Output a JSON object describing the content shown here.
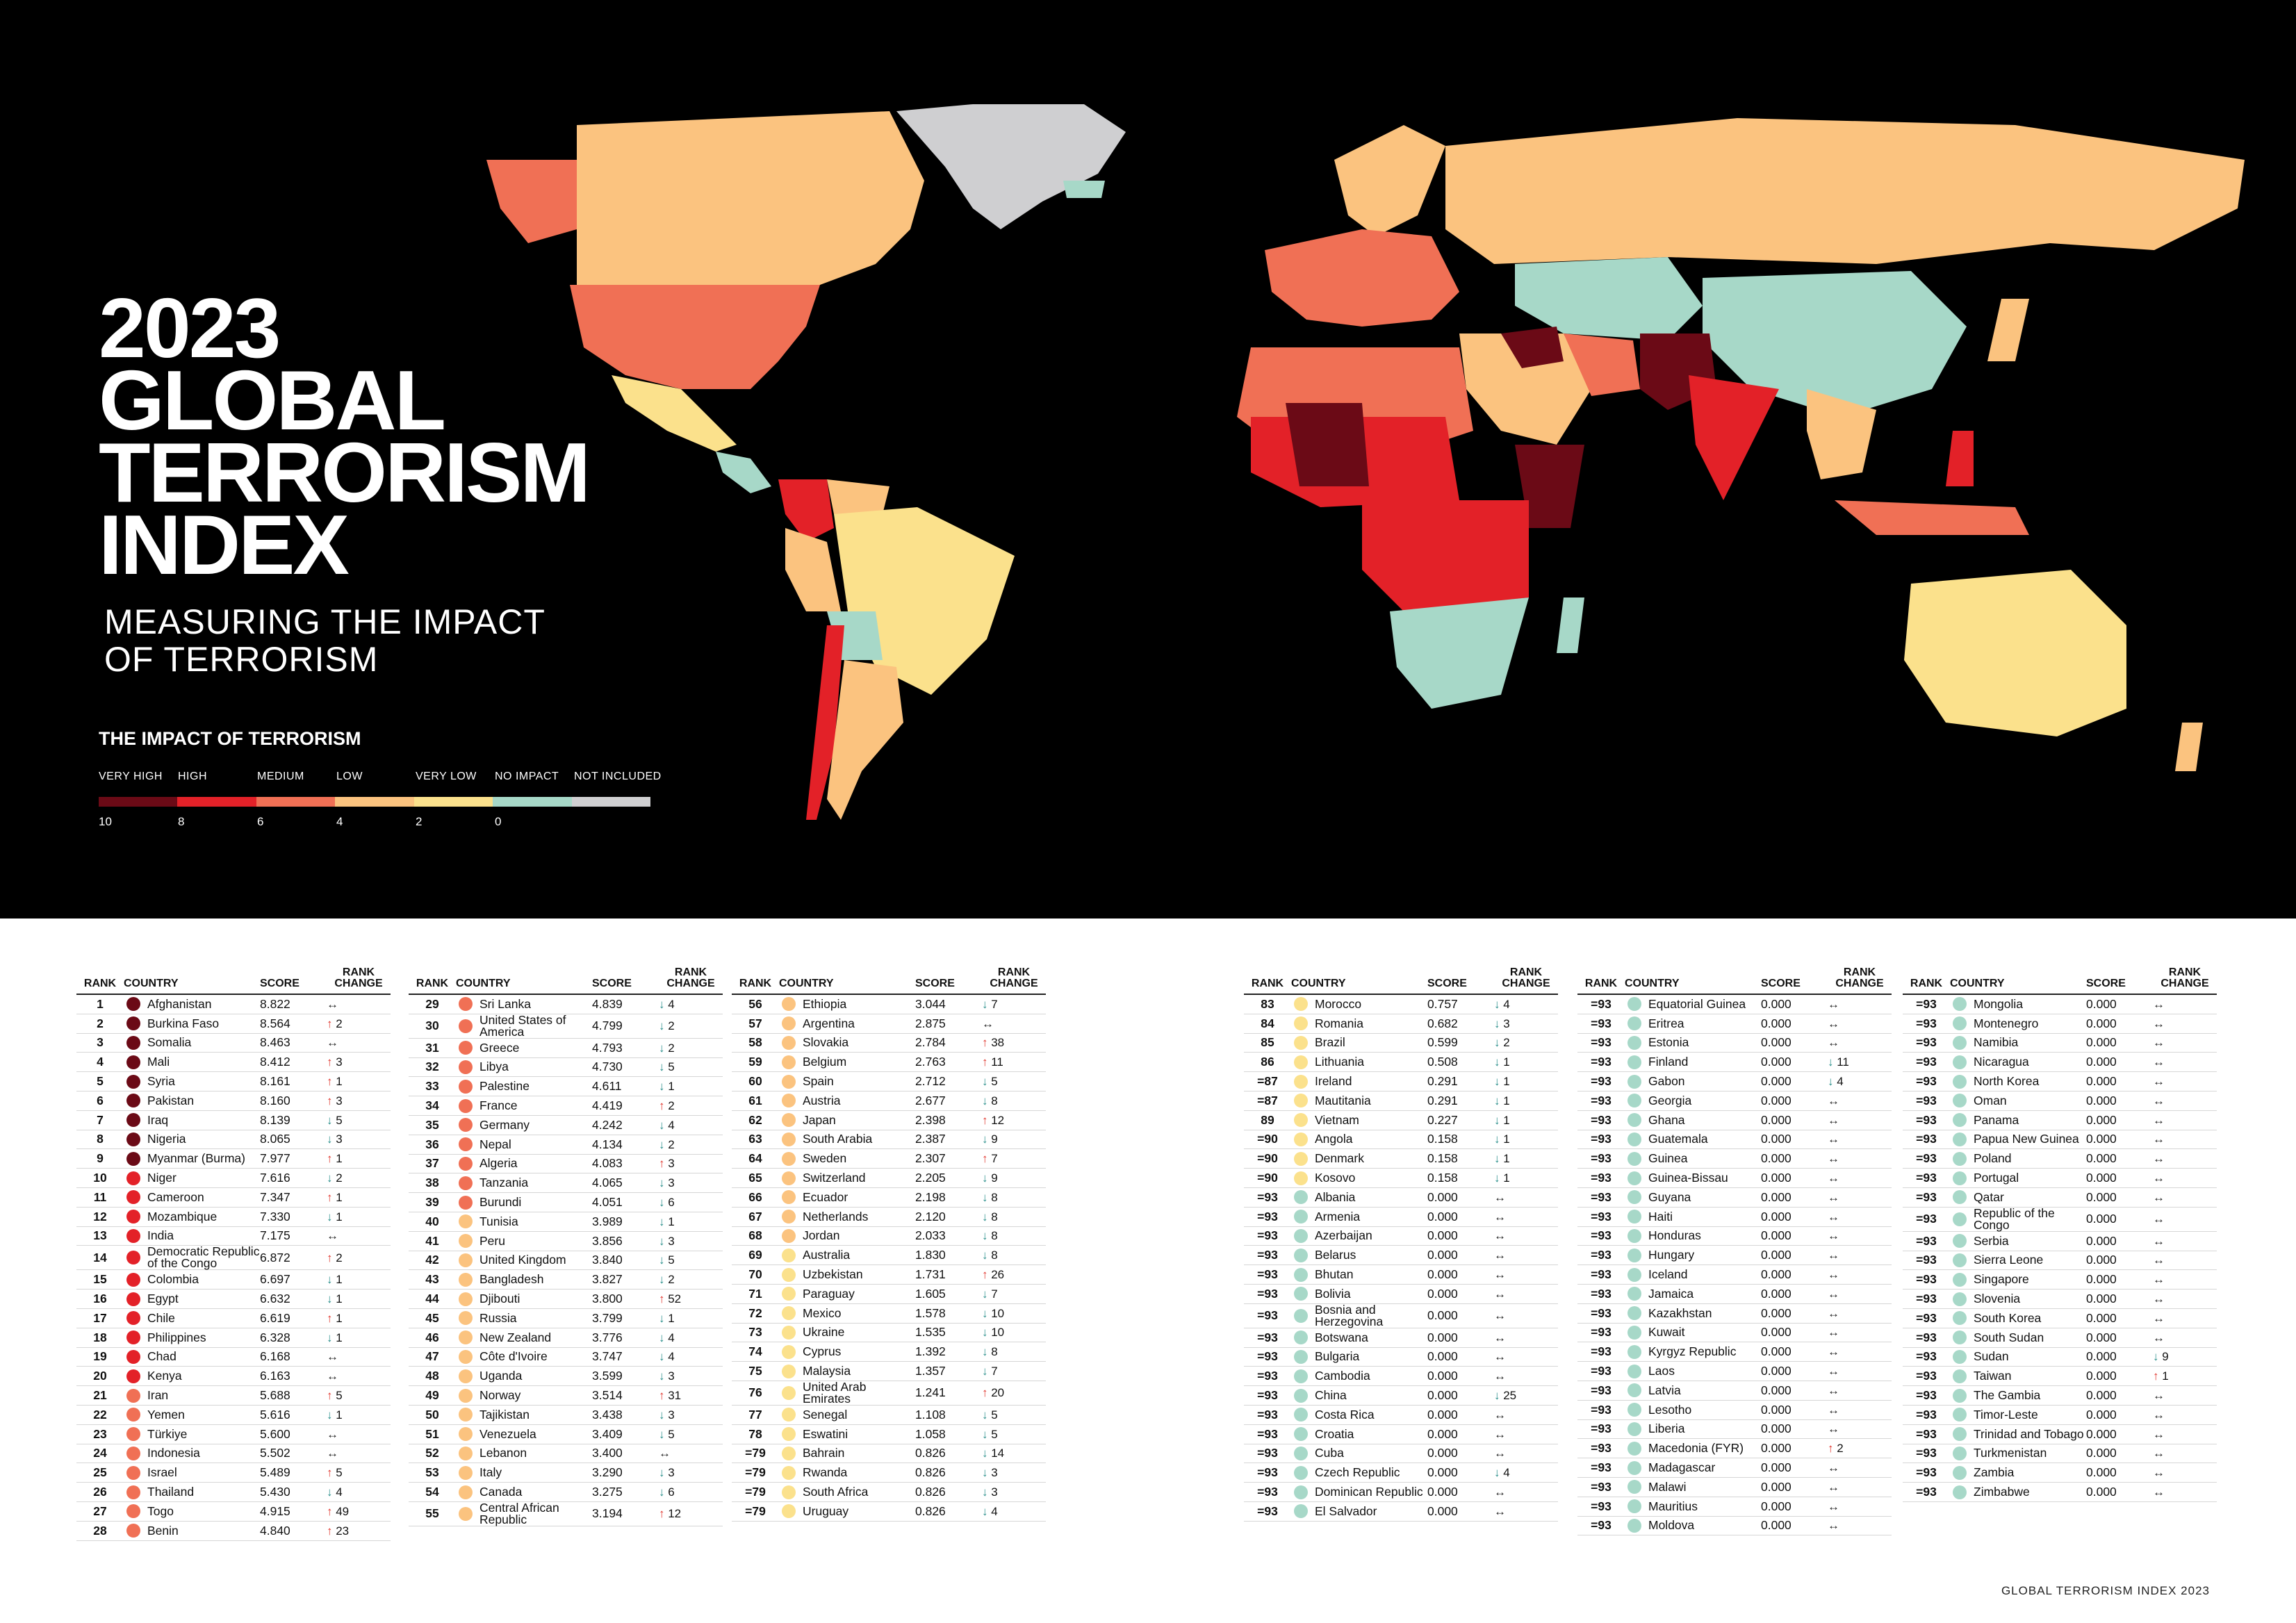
{
  "title": {
    "line1": "2023",
    "line2": "GLOBAL",
    "line3": "TERRORISM",
    "line4": "INDEX"
  },
  "subtitle": {
    "line1": "MEASURING THE IMPACT",
    "line2": "OF TERRORISM"
  },
  "legend": {
    "heading": "THE IMPACT OF TERRORISM",
    "categories": [
      {
        "label": "VERY HIGH",
        "color": "#6b0a16"
      },
      {
        "label": "HIGH",
        "color": "#e32128"
      },
      {
        "label": "MEDIUM",
        "color": "#f07055"
      },
      {
        "label": "LOW",
        "color": "#fbc37f"
      },
      {
        "label": "VERY LOW",
        "color": "#fbe18c"
      },
      {
        "label": "NO IMPACT",
        "color": "#a7d8c8"
      },
      {
        "label": "NOT INCLUDED",
        "color": "#cfcfd1"
      }
    ],
    "ticks": [
      "10",
      "8",
      "6",
      "4",
      "2",
      "0"
    ]
  },
  "headers": {
    "rank": "RANK",
    "country": "COUNTRY",
    "score": "SCORE",
    "change": "RANK CHANGE"
  },
  "arrows": {
    "up": "↑",
    "down": "↓",
    "same": "↔"
  },
  "arrow_colors": {
    "up": "#e0322a",
    "down": "#2a8f8a",
    "same": "#222222"
  },
  "level_colors": {
    "vh": "#6b0a16",
    "h": "#e32128",
    "m": "#f07055",
    "l": "#fbc37f",
    "vl": "#fbe18c",
    "n": "#a7d8c8"
  },
  "columns": [
    [
      [
        "1",
        "Afghanistan",
        "8.822",
        "vh",
        "s",
        ""
      ],
      [
        "2",
        "Burkina Faso",
        "8.564",
        "vh",
        "u",
        "2"
      ],
      [
        "3",
        "Somalia",
        "8.463",
        "vh",
        "s",
        ""
      ],
      [
        "4",
        "Mali",
        "8.412",
        "vh",
        "u",
        "3"
      ],
      [
        "5",
        "Syria",
        "8.161",
        "vh",
        "u",
        "1"
      ],
      [
        "6",
        "Pakistan",
        "8.160",
        "vh",
        "u",
        "3"
      ],
      [
        "7",
        "Iraq",
        "8.139",
        "vh",
        "d",
        "5"
      ],
      [
        "8",
        "Nigeria",
        "8.065",
        "vh",
        "d",
        "3"
      ],
      [
        "9",
        "Myanmar (Burma)",
        "7.977",
        "vh",
        "u",
        "1"
      ],
      [
        "10",
        "Niger",
        "7.616",
        "h",
        "d",
        "2"
      ],
      [
        "11",
        "Cameroon",
        "7.347",
        "h",
        "u",
        "1"
      ],
      [
        "12",
        "Mozambique",
        "7.330",
        "h",
        "d",
        "1"
      ],
      [
        "13",
        "India",
        "7.175",
        "h",
        "s",
        ""
      ],
      [
        "14",
        "Democratic Republic of the Congo",
        "6.872",
        "h",
        "u",
        "2"
      ],
      [
        "15",
        "Colombia",
        "6.697",
        "h",
        "d",
        "1"
      ],
      [
        "16",
        "Egypt",
        "6.632",
        "h",
        "d",
        "1"
      ],
      [
        "17",
        "Chile",
        "6.619",
        "h",
        "u",
        "1"
      ],
      [
        "18",
        "Philippines",
        "6.328",
        "h",
        "d",
        "1"
      ],
      [
        "19",
        "Chad",
        "6.168",
        "h",
        "s",
        ""
      ],
      [
        "20",
        "Kenya",
        "6.163",
        "h",
        "s",
        ""
      ],
      [
        "21",
        "Iran",
        "5.688",
        "m",
        "u",
        "5"
      ],
      [
        "22",
        "Yemen",
        "5.616",
        "m",
        "d",
        "1"
      ],
      [
        "23",
        "Türkiye",
        "5.600",
        "m",
        "s",
        ""
      ],
      [
        "24",
        "Indonesia",
        "5.502",
        "m",
        "s",
        ""
      ],
      [
        "25",
        "Israel",
        "5.489",
        "m",
        "u",
        "5"
      ],
      [
        "26",
        "Thailand",
        "5.430",
        "m",
        "d",
        "4"
      ],
      [
        "27",
        "Togo",
        "4.915",
        "m",
        "u",
        "49"
      ],
      [
        "28",
        "Benin",
        "4.840",
        "m",
        "u",
        "23"
      ]
    ],
    [
      [
        "29",
        "Sri Lanka",
        "4.839",
        "m",
        "d",
        "4"
      ],
      [
        "30",
        "United States of America",
        "4.799",
        "m",
        "d",
        "2"
      ],
      [
        "31",
        "Greece",
        "4.793",
        "m",
        "d",
        "2"
      ],
      [
        "32",
        "Libya",
        "4.730",
        "m",
        "d",
        "5"
      ],
      [
        "33",
        "Palestine",
        "4.611",
        "m",
        "d",
        "1"
      ],
      [
        "34",
        "France",
        "4.419",
        "m",
        "u",
        "2"
      ],
      [
        "35",
        "Germany",
        "4.242",
        "m",
        "d",
        "4"
      ],
      [
        "36",
        "Nepal",
        "4.134",
        "m",
        "d",
        "2"
      ],
      [
        "37",
        "Algeria",
        "4.083",
        "m",
        "u",
        "3"
      ],
      [
        "38",
        "Tanzania",
        "4.065",
        "m",
        "d",
        "3"
      ],
      [
        "39",
        "Burundi",
        "4.051",
        "m",
        "d",
        "6"
      ],
      [
        "40",
        "Tunisia",
        "3.989",
        "l",
        "d",
        "1"
      ],
      [
        "41",
        "Peru",
        "3.856",
        "l",
        "d",
        "3"
      ],
      [
        "42",
        "United Kingdom",
        "3.840",
        "l",
        "d",
        "5"
      ],
      [
        "43",
        "Bangladesh",
        "3.827",
        "l",
        "d",
        "2"
      ],
      [
        "44",
        "Djibouti",
        "3.800",
        "l",
        "u",
        "52"
      ],
      [
        "45",
        "Russia",
        "3.799",
        "l",
        "d",
        "1"
      ],
      [
        "46",
        "New Zealand",
        "3.776",
        "l",
        "d",
        "4"
      ],
      [
        "47",
        "Côte d'Ivoire",
        "3.747",
        "l",
        "d",
        "4"
      ],
      [
        "48",
        "Uganda",
        "3.599",
        "l",
        "d",
        "3"
      ],
      [
        "49",
        "Norway",
        "3.514",
        "l",
        "u",
        "31"
      ],
      [
        "50",
        "Tajikistan",
        "3.438",
        "l",
        "d",
        "3"
      ],
      [
        "51",
        "Venezuela",
        "3.409",
        "l",
        "d",
        "5"
      ],
      [
        "52",
        "Lebanon",
        "3.400",
        "l",
        "s",
        ""
      ],
      [
        "53",
        "Italy",
        "3.290",
        "l",
        "d",
        "3"
      ],
      [
        "54",
        "Canada",
        "3.275",
        "l",
        "d",
        "6"
      ],
      [
        "55",
        "Central African Republic",
        "3.194",
        "l",
        "u",
        "12"
      ]
    ],
    [
      [
        "56",
        "Ethiopia",
        "3.044",
        "l",
        "d",
        "7"
      ],
      [
        "57",
        "Argentina",
        "2.875",
        "l",
        "s",
        ""
      ],
      [
        "58",
        "Slovakia",
        "2.784",
        "l",
        "u",
        "38"
      ],
      [
        "59",
        "Belgium",
        "2.763",
        "l",
        "u",
        "11"
      ],
      [
        "60",
        "Spain",
        "2.712",
        "l",
        "d",
        "5"
      ],
      [
        "61",
        "Austria",
        "2.677",
        "l",
        "d",
        "8"
      ],
      [
        "62",
        "Japan",
        "2.398",
        "l",
        "u",
        "12"
      ],
      [
        "63",
        "South Arabia",
        "2.387",
        "l",
        "d",
        "9"
      ],
      [
        "64",
        "Sweden",
        "2.307",
        "l",
        "u",
        "7"
      ],
      [
        "65",
        "Switzerland",
        "2.205",
        "l",
        "d",
        "9"
      ],
      [
        "66",
        "Ecuador",
        "2.198",
        "l",
        "d",
        "8"
      ],
      [
        "67",
        "Netherlands",
        "2.120",
        "l",
        "d",
        "8"
      ],
      [
        "68",
        "Jordan",
        "2.033",
        "l",
        "d",
        "8"
      ],
      [
        "69",
        "Australia",
        "1.830",
        "vl",
        "d",
        "8"
      ],
      [
        "70",
        "Uzbekistan",
        "1.731",
        "vl",
        "u",
        "26"
      ],
      [
        "71",
        "Paraguay",
        "1.605",
        "vl",
        "d",
        "7"
      ],
      [
        "72",
        "Mexico",
        "1.578",
        "vl",
        "d",
        "10"
      ],
      [
        "73",
        "Ukraine",
        "1.535",
        "vl",
        "d",
        "10"
      ],
      [
        "74",
        "Cyprus",
        "1.392",
        "vl",
        "d",
        "8"
      ],
      [
        "75",
        "Malaysia",
        "1.357",
        "vl",
        "d",
        "7"
      ],
      [
        "76",
        "United Arab Emirates",
        "1.241",
        "vl",
        "u",
        "20"
      ],
      [
        "77",
        "Senegal",
        "1.108",
        "vl",
        "d",
        "5"
      ],
      [
        "78",
        "Eswatini",
        "1.058",
        "vl",
        "d",
        "5"
      ],
      [
        "=79",
        "Bahrain",
        "0.826",
        "vl",
        "d",
        "14"
      ],
      [
        "=79",
        "Rwanda",
        "0.826",
        "vl",
        "d",
        "3"
      ],
      [
        "=79",
        "South Africa",
        "0.826",
        "vl",
        "d",
        "3"
      ],
      [
        "=79",
        "Uruguay",
        "0.826",
        "vl",
        "d",
        "4"
      ]
    ],
    [
      [
        "83",
        "Morocco",
        "0.757",
        "vl",
        "d",
        "4"
      ],
      [
        "84",
        "Romania",
        "0.682",
        "vl",
        "d",
        "3"
      ],
      [
        "85",
        "Brazil",
        "0.599",
        "vl",
        "d",
        "2"
      ],
      [
        "86",
        "Lithuania",
        "0.508",
        "vl",
        "d",
        "1"
      ],
      [
        "=87",
        "Ireland",
        "0.291",
        "vl",
        "d",
        "1"
      ],
      [
        "=87",
        "Mautitania",
        "0.291",
        "vl",
        "d",
        "1"
      ],
      [
        "89",
        "Vietnam",
        "0.227",
        "vl",
        "d",
        "1"
      ],
      [
        "=90",
        "Angola",
        "0.158",
        "vl",
        "d",
        "1"
      ],
      [
        "=90",
        "Denmark",
        "0.158",
        "vl",
        "d",
        "1"
      ],
      [
        "=90",
        "Kosovo",
        "0.158",
        "vl",
        "d",
        "1"
      ],
      [
        "=93",
        "Albania",
        "0.000",
        "n",
        "s",
        ""
      ],
      [
        "=93",
        "Armenia",
        "0.000",
        "n",
        "s",
        ""
      ],
      [
        "=93",
        "Azerbaijan",
        "0.000",
        "n",
        "s",
        ""
      ],
      [
        "=93",
        "Belarus",
        "0.000",
        "n",
        "s",
        ""
      ],
      [
        "=93",
        "Bhutan",
        "0.000",
        "n",
        "s",
        ""
      ],
      [
        "=93",
        "Bolivia",
        "0.000",
        "n",
        "s",
        ""
      ],
      [
        "=93",
        "Bosnia and Herzegovina",
        "0.000",
        "n",
        "s",
        ""
      ],
      [
        "=93",
        "Botswana",
        "0.000",
        "n",
        "s",
        ""
      ],
      [
        "=93",
        "Bulgaria",
        "0.000",
        "n",
        "s",
        ""
      ],
      [
        "=93",
        "Cambodia",
        "0.000",
        "n",
        "s",
        ""
      ],
      [
        "=93",
        "China",
        "0.000",
        "n",
        "d",
        "25"
      ],
      [
        "=93",
        "Costa Rica",
        "0.000",
        "n",
        "s",
        ""
      ],
      [
        "=93",
        "Croatia",
        "0.000",
        "n",
        "s",
        ""
      ],
      [
        "=93",
        "Cuba",
        "0.000",
        "n",
        "s",
        ""
      ],
      [
        "=93",
        "Czech Republic",
        "0.000",
        "n",
        "d",
        "4"
      ],
      [
        "=93",
        "Dominican Republic",
        "0.000",
        "n",
        "s",
        ""
      ],
      [
        "=93",
        "El Salvador",
        "0.000",
        "n",
        "s",
        ""
      ]
    ],
    [
      [
        "=93",
        "Equatorial Guinea",
        "0.000",
        "n",
        "s",
        ""
      ],
      [
        "=93",
        "Eritrea",
        "0.000",
        "n",
        "s",
        ""
      ],
      [
        "=93",
        "Estonia",
        "0.000",
        "n",
        "s",
        ""
      ],
      [
        "=93",
        "Finland",
        "0.000",
        "n",
        "d",
        "11"
      ],
      [
        "=93",
        "Gabon",
        "0.000",
        "n",
        "d",
        "4"
      ],
      [
        "=93",
        "Georgia",
        "0.000",
        "n",
        "s",
        ""
      ],
      [
        "=93",
        "Ghana",
        "0.000",
        "n",
        "s",
        ""
      ],
      [
        "=93",
        "Guatemala",
        "0.000",
        "n",
        "s",
        ""
      ],
      [
        "=93",
        "Guinea",
        "0.000",
        "n",
        "s",
        ""
      ],
      [
        "=93",
        "Guinea-Bissau",
        "0.000",
        "n",
        "s",
        ""
      ],
      [
        "=93",
        "Guyana",
        "0.000",
        "n",
        "s",
        ""
      ],
      [
        "=93",
        "Haiti",
        "0.000",
        "n",
        "s",
        ""
      ],
      [
        "=93",
        "Honduras",
        "0.000",
        "n",
        "s",
        ""
      ],
      [
        "=93",
        "Hungary",
        "0.000",
        "n",
        "s",
        ""
      ],
      [
        "=93",
        "Iceland",
        "0.000",
        "n",
        "s",
        ""
      ],
      [
        "=93",
        "Jamaica",
        "0.000",
        "n",
        "s",
        ""
      ],
      [
        "=93",
        "Kazakhstan",
        "0.000",
        "n",
        "s",
        ""
      ],
      [
        "=93",
        "Kuwait",
        "0.000",
        "n",
        "s",
        ""
      ],
      [
        "=93",
        "Kyrgyz Republic",
        "0.000",
        "n",
        "s",
        ""
      ],
      [
        "=93",
        "Laos",
        "0.000",
        "n",
        "s",
        ""
      ],
      [
        "=93",
        "Latvia",
        "0.000",
        "n",
        "s",
        ""
      ],
      [
        "=93",
        "Lesotho",
        "0.000",
        "n",
        "s",
        ""
      ],
      [
        "=93",
        "Liberia",
        "0.000",
        "n",
        "s",
        ""
      ],
      [
        "=93",
        "Macedonia (FYR)",
        "0.000",
        "n",
        "u",
        "2"
      ],
      [
        "=93",
        "Madagascar",
        "0.000",
        "n",
        "s",
        ""
      ],
      [
        "=93",
        "Malawi",
        "0.000",
        "n",
        "s",
        ""
      ],
      [
        "=93",
        "Mauritius",
        "0.000",
        "n",
        "s",
        ""
      ],
      [
        "=93",
        "Moldova",
        "0.000",
        "n",
        "s",
        ""
      ]
    ],
    [
      [
        "=93",
        "Mongolia",
        "0.000",
        "n",
        "s",
        ""
      ],
      [
        "=93",
        "Montenegro",
        "0.000",
        "n",
        "s",
        ""
      ],
      [
        "=93",
        "Namibia",
        "0.000",
        "n",
        "s",
        ""
      ],
      [
        "=93",
        "Nicaragua",
        "0.000",
        "n",
        "s",
        ""
      ],
      [
        "=93",
        "North Korea",
        "0.000",
        "n",
        "s",
        ""
      ],
      [
        "=93",
        "Oman",
        "0.000",
        "n",
        "s",
        ""
      ],
      [
        "=93",
        "Panama",
        "0.000",
        "n",
        "s",
        ""
      ],
      [
        "=93",
        "Papua New Guinea",
        "0.000",
        "n",
        "s",
        ""
      ],
      [
        "=93",
        "Poland",
        "0.000",
        "n",
        "s",
        ""
      ],
      [
        "=93",
        "Portugal",
        "0.000",
        "n",
        "s",
        ""
      ],
      [
        "=93",
        "Qatar",
        "0.000",
        "n",
        "s",
        ""
      ],
      [
        "=93",
        "Republic of the Congo",
        "0.000",
        "n",
        "s",
        ""
      ],
      [
        "=93",
        "Serbia",
        "0.000",
        "n",
        "s",
        ""
      ],
      [
        "=93",
        "Sierra Leone",
        "0.000",
        "n",
        "s",
        ""
      ],
      [
        "=93",
        "Singapore",
        "0.000",
        "n",
        "s",
        ""
      ],
      [
        "=93",
        "Slovenia",
        "0.000",
        "n",
        "s",
        ""
      ],
      [
        "=93",
        "South Korea",
        "0.000",
        "n",
        "s",
        ""
      ],
      [
        "=93",
        "South Sudan",
        "0.000",
        "n",
        "s",
        ""
      ],
      [
        "=93",
        "Sudan",
        "0.000",
        "n",
        "d",
        "9"
      ],
      [
        "=93",
        "Taiwan",
        "0.000",
        "n",
        "u",
        "1"
      ],
      [
        "=93",
        "The Gambia",
        "0.000",
        "n",
        "s",
        ""
      ],
      [
        "=93",
        "Timor-Leste",
        "0.000",
        "n",
        "s",
        ""
      ],
      [
        "=93",
        "Trinidad and Tobago",
        "0.000",
        "n",
        "s",
        ""
      ],
      [
        "=93",
        "Turkmenistan",
        "0.000",
        "n",
        "s",
        ""
      ],
      [
        "=93",
        "Zambia",
        "0.000",
        "n",
        "s",
        ""
      ],
      [
        "=93",
        "Zimbabwe",
        "0.000",
        "n",
        "s",
        ""
      ]
    ]
  ],
  "footer": "GLOBAL TERRORISM INDEX 2023"
}
